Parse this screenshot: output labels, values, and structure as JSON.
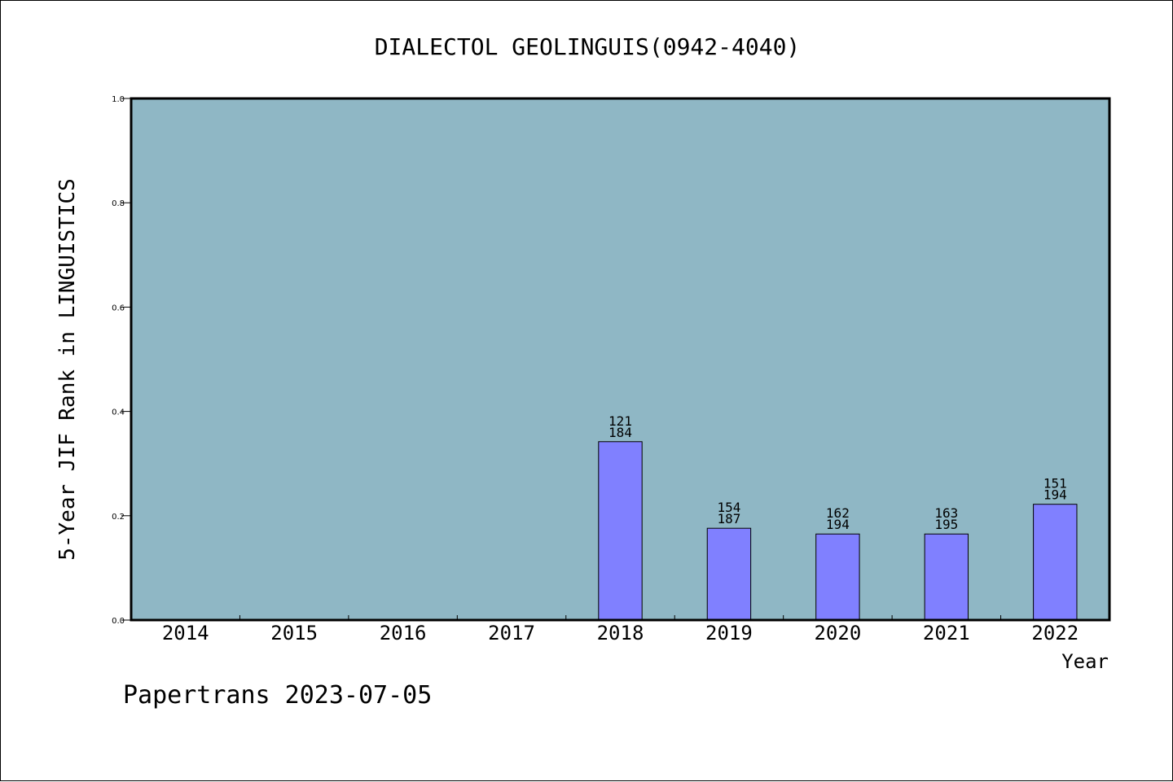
{
  "chart_data": {
    "type": "bar",
    "title": "DIALECTOL GEOLINGUIS(0942-4040)",
    "xlabel": "Year",
    "ylabel": "5-Year JIF Rank in LINGUISTICS",
    "categories": [
      "2014",
      "2015",
      "2016",
      "2017",
      "2018",
      "2019",
      "2020",
      "2021",
      "2022"
    ],
    "values": [
      null,
      null,
      null,
      null,
      0.342,
      0.176,
      0.165,
      0.165,
      0.222
    ],
    "rank_labels": [
      "",
      "",
      "",
      "",
      "121",
      "154",
      "162",
      "163",
      "151"
    ],
    "total_labels": [
      "",
      "",
      "",
      "",
      "184",
      "187",
      "194",
      "195",
      "194"
    ],
    "ylim": [
      0,
      1.0
    ],
    "yticks": [
      "0.0",
      "0.2",
      "0.4",
      "0.6",
      "0.8",
      "1.0"
    ],
    "grid": false,
    "colors": {
      "plot_background": "#8fb7c5",
      "bar_fill": "#8080ff",
      "bar_stroke": "#000000",
      "axis": "#000000"
    }
  },
  "footer": {
    "text": "Papertrans 2023-07-05"
  }
}
